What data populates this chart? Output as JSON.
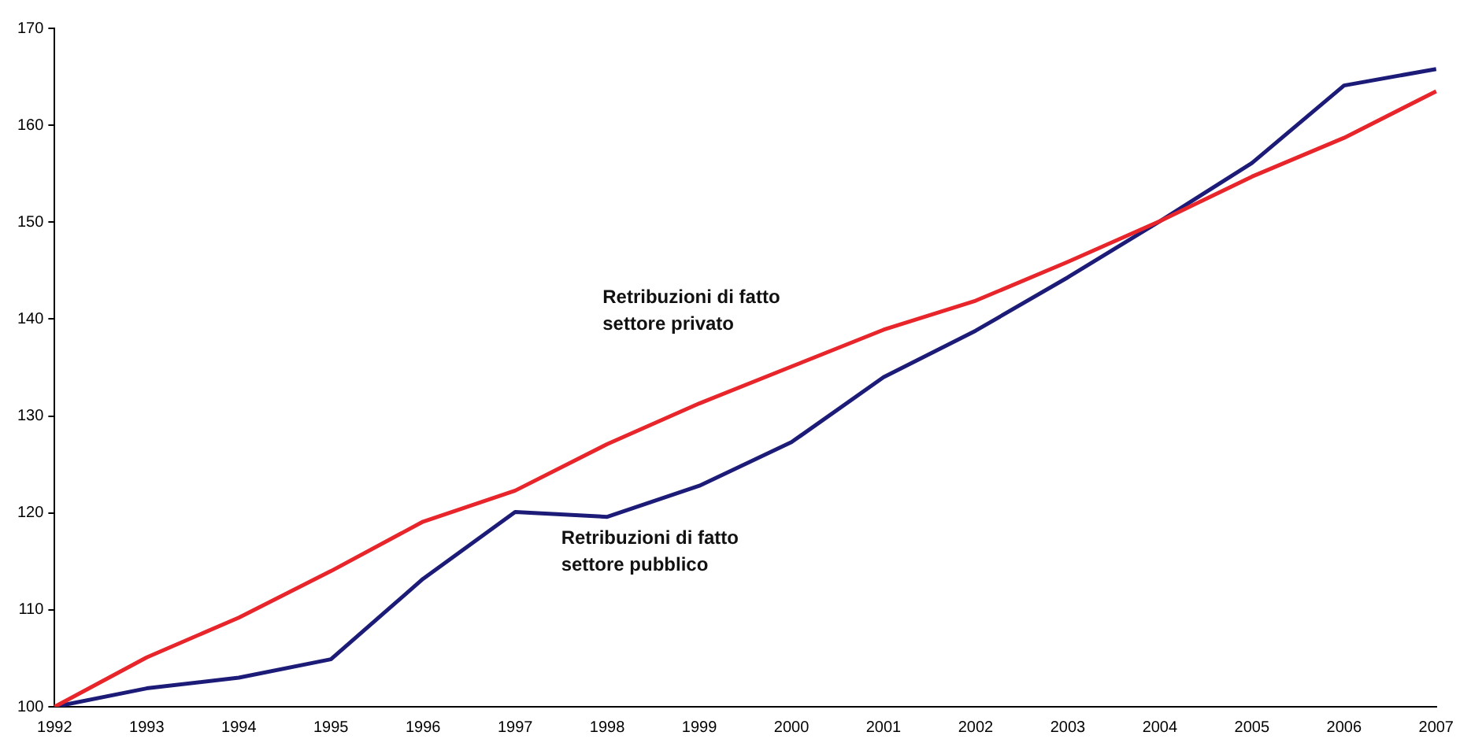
{
  "chart_data": {
    "type": "line",
    "categories": [
      "1992",
      "1993",
      "1994",
      "1995",
      "1996",
      "1997",
      "1998",
      "1999",
      "2000",
      "2001",
      "2002",
      "2003",
      "2004",
      "2005",
      "2006",
      "2007"
    ],
    "series": [
      {
        "name": "Retribuzioni di fatto settore privato",
        "color": "#e8252a",
        "values": [
          100,
          105.1,
          109.2,
          114,
          119.1,
          122.3,
          127.1,
          131.3,
          135.1,
          138.9,
          141.9,
          145.9,
          150.1,
          154.7,
          158.7,
          163.5
        ]
      },
      {
        "name": "Retribuzioni di fatto settore pubblico",
        "color": "#1c1c78",
        "values": [
          100,
          101.9,
          103,
          104.9,
          113.2,
          120.1,
          119.6,
          122.8,
          127.3,
          134,
          138.8,
          144.3,
          150.1,
          156.1,
          164.1,
          165.8
        ]
      }
    ],
    "ylim": [
      100,
      170
    ],
    "yticks": [
      100,
      110,
      120,
      130,
      140,
      150,
      160,
      170
    ],
    "grid": false,
    "legend": false,
    "marker": "none",
    "line_style": "solid"
  }
}
